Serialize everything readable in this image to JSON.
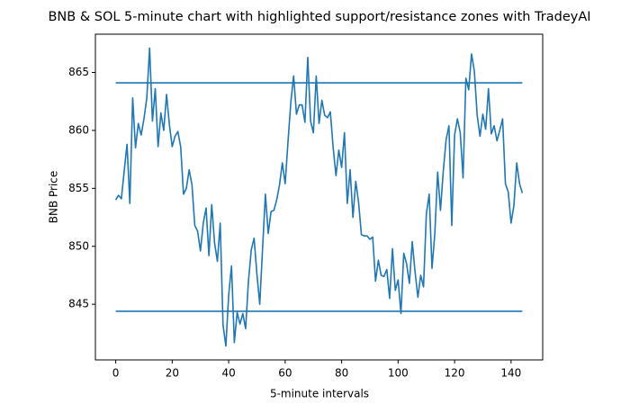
{
  "chart_data": {
    "type": "line",
    "title": "BNB & SOL 5-minute chart with highlighted support/resistance zones with TradeyAI",
    "xlabel": "5-minute intervals",
    "ylabel": "BNB Price",
    "x": [
      0,
      1,
      2,
      3,
      4,
      5,
      6,
      7,
      8,
      9,
      10,
      11,
      12,
      13,
      14,
      15,
      16,
      17,
      18,
      19,
      20,
      21,
      22,
      23,
      24,
      25,
      26,
      27,
      28,
      29,
      30,
      31,
      32,
      33,
      34,
      35,
      36,
      37,
      38,
      39,
      40,
      41,
      42,
      43,
      44,
      45,
      46,
      47,
      48,
      49,
      50,
      51,
      52,
      53,
      54,
      55,
      56,
      57,
      58,
      59,
      60,
      61,
      62,
      63,
      64,
      65,
      66,
      67,
      68,
      69,
      70,
      71,
      72,
      73,
      74,
      75,
      76,
      77,
      78,
      79,
      80,
      81,
      82,
      83,
      84,
      85,
      86,
      87,
      88,
      89,
      90,
      91,
      92,
      93,
      94,
      95,
      96,
      97,
      98,
      99,
      100,
      101,
      102,
      103,
      104,
      105,
      106,
      107,
      108,
      109,
      110,
      111,
      112,
      113,
      114,
      115,
      116,
      117,
      118,
      119,
      120,
      121,
      122,
      123,
      124,
      125,
      126,
      127,
      128,
      129,
      130,
      131,
      132,
      133,
      134,
      135,
      136,
      137,
      138,
      139,
      140,
      141,
      142,
      143,
      144
    ],
    "series": [
      {
        "color": "#1f77b4",
        "values": [
          854.0,
          854.4,
          854.1,
          856.5,
          858.8,
          853.7,
          862.8,
          858.5,
          860.6,
          859.6,
          861.0,
          862.8,
          867.1,
          860.8,
          863.6,
          858.6,
          861.5,
          860.0,
          863.1,
          860.5,
          858.6,
          859.5,
          859.9,
          858.6,
          854.5,
          855.0,
          856.6,
          855.3,
          851.8,
          851.3,
          849.6,
          852.0,
          853.3,
          849.2,
          853.6,
          850.3,
          848.7,
          852.0,
          843.2,
          841.4,
          845.8,
          848.3,
          841.7,
          844.3,
          843.3,
          844.2,
          842.9,
          847.0,
          849.7,
          850.7,
          847.6,
          845.0,
          849.8,
          854.5,
          851.1,
          853.0,
          853.1,
          854.0,
          855.3,
          857.2,
          855.4,
          859.0,
          862.4,
          864.7,
          861.4,
          862.2,
          862.2,
          860.7,
          866.3,
          860.8,
          859.8,
          864.7,
          860.6,
          862.6,
          861.3,
          861.1,
          861.6,
          858.5,
          856.1,
          858.3,
          856.8,
          859.8,
          853.7,
          856.6,
          852.5,
          855.6,
          853.8,
          851.0,
          850.9,
          850.9,
          850.6,
          850.8,
          847.0,
          848.8,
          847.5,
          847.4,
          848.0,
          845.5,
          849.8,
          846.2,
          847.1,
          844.2,
          849.4,
          848.5,
          846.8,
          850.4,
          847.8,
          845.6,
          847.5,
          846.5,
          852.8,
          854.5,
          848.1,
          851.1,
          856.4,
          853.1,
          856.5,
          859.2,
          860.4,
          851.8,
          859.6,
          861.0,
          859.8,
          855.9,
          864.5,
          863.5,
          866.6,
          865.1,
          861.3,
          859.5,
          861.4,
          860.1,
          863.6,
          859.7,
          860.4,
          859.1,
          860.0,
          861.0,
          855.4,
          854.7,
          852.0,
          853.5,
          857.2,
          855.4,
          854.6
        ]
      }
    ],
    "hlines": [
      864.1,
      844.4
    ],
    "hline_color": "#1f77b4",
    "xlim": [
      -7.2,
      151.2
    ],
    "ylim": [
      840.2,
      868.3
    ],
    "xticks": [
      0,
      20,
      40,
      60,
      80,
      100,
      120,
      140
    ],
    "yticks": [
      845,
      850,
      855,
      860,
      865
    ]
  }
}
